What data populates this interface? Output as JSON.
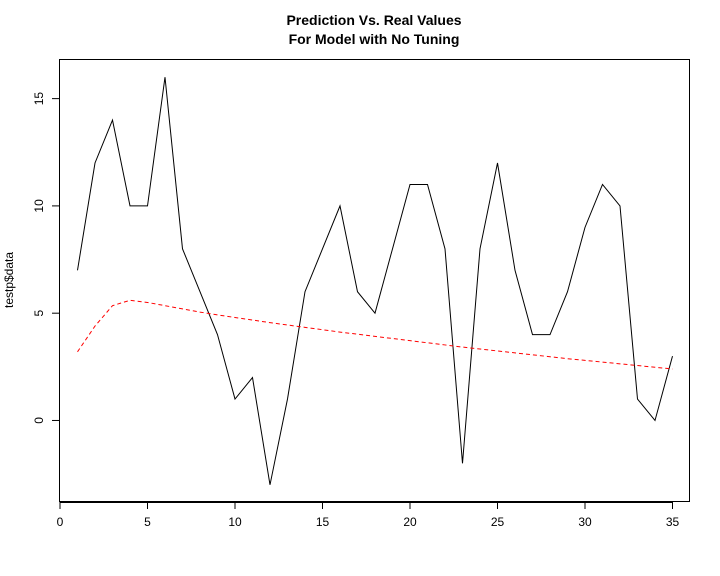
{
  "chart_data": {
    "type": "line",
    "title_line1": "Prediction Vs. Real Values",
    "title_line2": "For Model with No Tuning",
    "xlabel": "",
    "ylabel": "testp$data",
    "xlim": [
      0,
      36
    ],
    "ylim": [
      -3.8,
      16.8
    ],
    "x_ticks": [
      0,
      5,
      10,
      15,
      20,
      25,
      30,
      35
    ],
    "y_ticks": [
      0,
      5,
      10,
      15
    ],
    "x": [
      1,
      2,
      3,
      4,
      5,
      6,
      7,
      8,
      9,
      10,
      11,
      12,
      13,
      14,
      15,
      16,
      17,
      18,
      19,
      20,
      21,
      22,
      23,
      24,
      25,
      26,
      27,
      28,
      29,
      30,
      31,
      32,
      33,
      34,
      35
    ],
    "series": [
      {
        "color": "#000000",
        "dash": "solid",
        "values": [
          7,
          12,
          14,
          10,
          10,
          16,
          8,
          6,
          4,
          1,
          2,
          -3,
          1,
          6,
          8,
          10,
          6,
          5,
          8,
          11,
          11,
          8,
          -2,
          8,
          12,
          7,
          4,
          4,
          6,
          9,
          11,
          10,
          1,
          0,
          3
        ]
      },
      {
        "color": "#ff0000",
        "dash": "dashed",
        "values": [
          3.2,
          4.4,
          5.35,
          5.6,
          5.5,
          5.35,
          5.2,
          5.05,
          4.92,
          4.8,
          4.68,
          4.56,
          4.45,
          4.34,
          4.23,
          4.12,
          4.02,
          3.92,
          3.82,
          3.72,
          3.62,
          3.52,
          3.42,
          3.33,
          3.24,
          3.15,
          3.06,
          2.97,
          2.88,
          2.8,
          2.72,
          2.64,
          2.56,
          2.48,
          2.4
        ]
      }
    ]
  }
}
